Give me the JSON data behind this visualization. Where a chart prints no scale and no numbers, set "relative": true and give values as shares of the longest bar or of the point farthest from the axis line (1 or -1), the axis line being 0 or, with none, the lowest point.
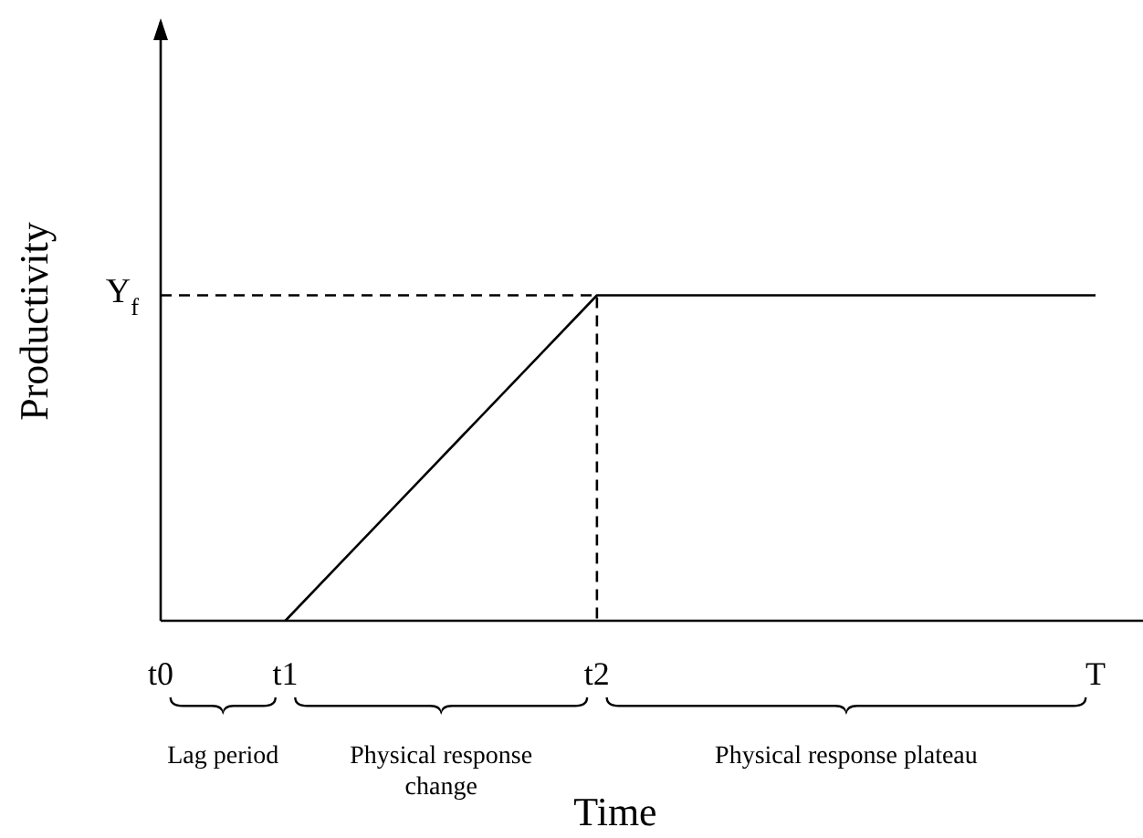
{
  "chart_data": {
    "type": "line",
    "xlabel": "Time",
    "ylabel": "Productivity",
    "relative": true,
    "categories": [
      "t0",
      null,
      "t1",
      null,
      null,
      null,
      null,
      "t2",
      null,
      null,
      null,
      null,
      null,
      null,
      null,
      "T"
    ],
    "series": [
      {
        "color": "#000000",
        "line_style": "solid",
        "values": [
          null,
          null,
          0,
          0.2,
          0.4,
          0.6,
          0.8,
          1,
          1,
          1,
          1,
          1,
          1,
          1,
          1,
          1
        ]
      },
      {
        "color": "#000000",
        "line_style": "dashed",
        "x": [
          "t0",
          "t2",
          "t2"
        ],
        "values": [
          1,
          1,
          0
        ]
      }
    ],
    "annotations": [
      "Y$_{f}$",
      "Lag period",
      "Physical response change",
      "Physical response plateau"
    ],
    "grid": false,
    "marker": "none"
  }
}
